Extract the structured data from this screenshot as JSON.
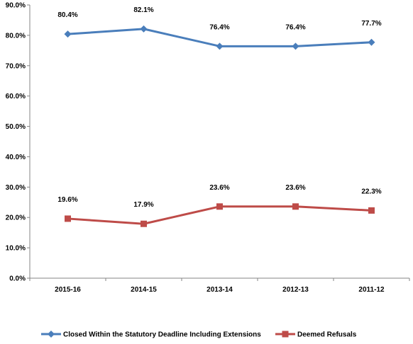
{
  "chart_data": {
    "type": "line",
    "categories": [
      "2015-16",
      "2014-15",
      "2013-14",
      "2012-13",
      "2011-12"
    ],
    "series": [
      {
        "name": "Closed Within the Statutory Deadline Including Extensions",
        "values": [
          80.4,
          82.1,
          76.4,
          76.4,
          77.7
        ],
        "labels": [
          "80.4%",
          "82.1%",
          "76.4%",
          "76.4%",
          "77.7%"
        ],
        "color": "#4A7EBB",
        "marker": "diamond"
      },
      {
        "name": "Deemed Refusals",
        "values": [
          19.6,
          17.9,
          23.6,
          23.6,
          22.3
        ],
        "labels": [
          "19.6%",
          "17.9%",
          "23.6%",
          "23.6%",
          "22.3%"
        ],
        "color": "#BE4B48",
        "marker": "square"
      }
    ],
    "y_ticks": [
      "0.0%",
      "10.0%",
      "20.0%",
      "30.0%",
      "40.0%",
      "50.0%",
      "60.0%",
      "70.0%",
      "80.0%",
      "90.0%"
    ],
    "ylim": [
      0,
      90
    ],
    "grid": false,
    "legend_position": "bottom"
  }
}
